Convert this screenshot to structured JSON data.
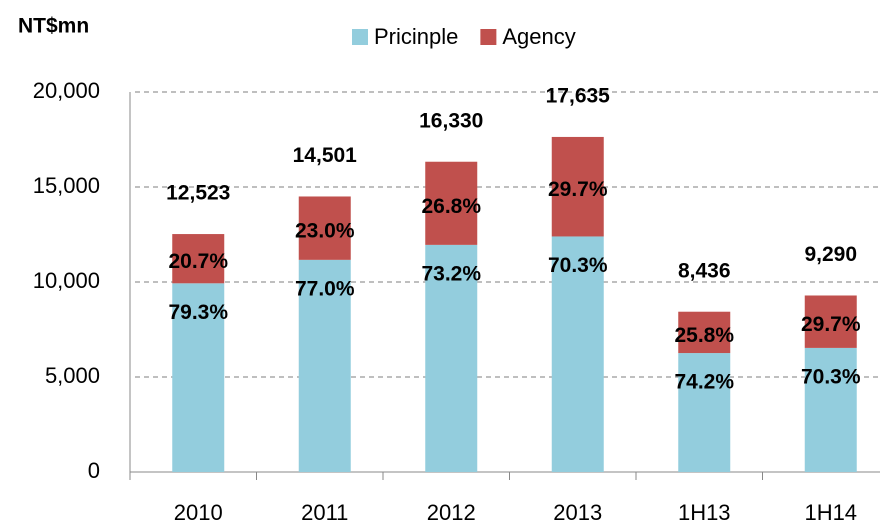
{
  "chart_data": {
    "type": "stacked_bar",
    "y_axis_title": "NT$mn",
    "categories": [
      "2010",
      "2011",
      "2012",
      "2013",
      "1H13",
      "1H14"
    ],
    "series": [
      {
        "name": "Pricinple",
        "color": "#93cddd",
        "values": [
          9931,
          11166,
          11954,
          12397,
          6260,
          6531
        ],
        "share_labels": [
          "79.3%",
          "77.0%",
          "73.2%",
          "70.3%",
          "74.2%",
          "70.3%"
        ]
      },
      {
        "name": "Agency",
        "color": "#c0504d",
        "values": [
          2592,
          3335,
          4376,
          5238,
          2176,
          2759
        ],
        "share_labels": [
          "20.7%",
          "23.0%",
          "26.8%",
          "29.7%",
          "25.8%",
          "29.7%"
        ]
      }
    ],
    "totals": [
      12523,
      14501,
      16330,
      17635,
      8436,
      9290
    ],
    "total_labels": [
      "12,523",
      "14,501",
      "16,330",
      "17,635",
      "8,436",
      "9,290"
    ],
    "ylim": [
      0,
      20000
    ],
    "yticks": [
      0,
      {
        "value": 5000,
        "label": "5,000"
      },
      {
        "value": 10000,
        "label": "10,000"
      },
      {
        "value": 15000,
        "label": "15,000"
      },
      {
        "value": 20000,
        "label": "20,000"
      }
    ],
    "grid": true,
    "legend": "top"
  }
}
